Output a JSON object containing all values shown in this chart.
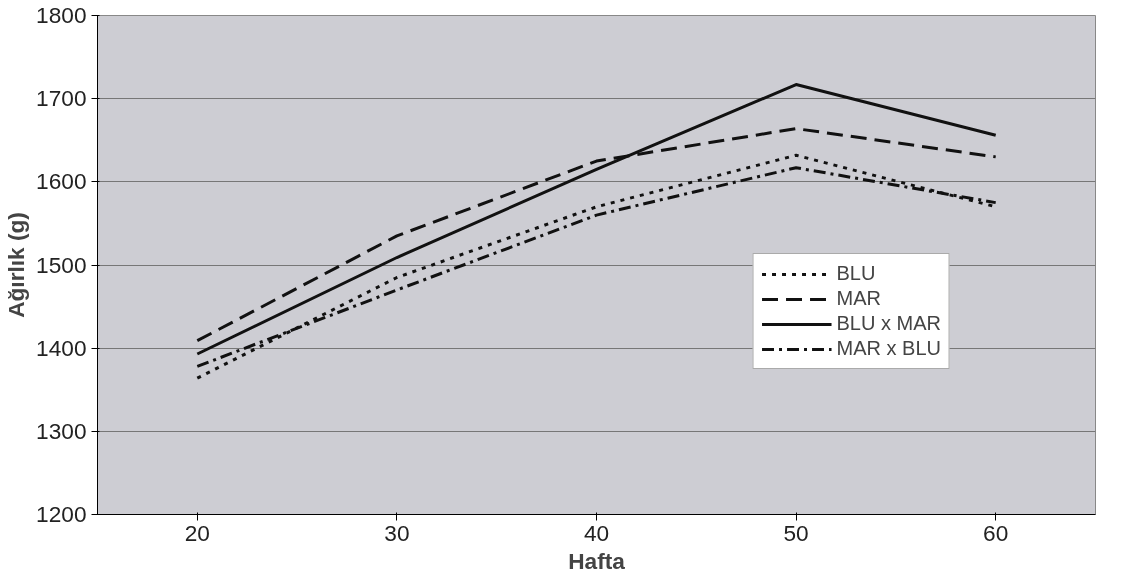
{
  "chart_data": {
    "type": "line",
    "xlabel": "Hafta",
    "ylabel": "Ağırlık (g)",
    "categories": [
      "20",
      "30",
      "40",
      "50",
      "60"
    ],
    "ylim": [
      1200,
      1800
    ],
    "yticks": [
      1200,
      1300,
      1400,
      1500,
      1600,
      1700,
      1800
    ],
    "grid": "y",
    "legend": "bottom right",
    "marker": "none",
    "series": [
      {
        "name": "BLU",
        "color": "#111111",
        "line_style": "dotted",
        "values": [
          1364,
          1485,
          1570,
          1632,
          1570
        ]
      },
      {
        "name": "MAR",
        "color": "#111111",
        "line_style": "dashed",
        "values": [
          1409,
          1535,
          1625,
          1664,
          1630
        ]
      },
      {
        "name": "BLU x MAR",
        "color": "#111111",
        "line_style": "solid",
        "values": [
          1393,
          1509,
          1615,
          1717,
          1656
        ]
      },
      {
        "name": "MAR x BLU",
        "color": "#111111",
        "line_style": "dashdot",
        "values": [
          1378,
          1470,
          1560,
          1617,
          1575
        ]
      }
    ]
  }
}
